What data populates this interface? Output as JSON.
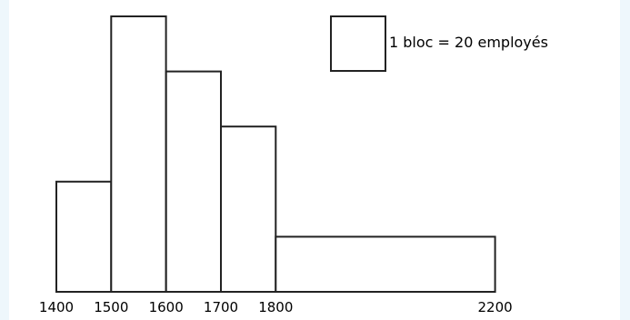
{
  "chart_data": {
    "type": "histogram",
    "bins": [
      {
        "start": 1400,
        "end": 1500,
        "height": 2
      },
      {
        "start": 1500,
        "end": 1600,
        "height": 5
      },
      {
        "start": 1600,
        "end": 1700,
        "height": 4
      },
      {
        "start": 1700,
        "end": 1800,
        "height": 3
      },
      {
        "start": 1800,
        "end": 2200,
        "height": 1
      }
    ],
    "tick_labels": [
      "1400",
      "1500",
      "1600",
      "1700",
      "1800",
      "2200"
    ],
    "legend": {
      "text": "1 bloc = 20 employés"
    },
    "colors": {
      "fill": "#ffffff",
      "stroke": "#222222"
    }
  }
}
